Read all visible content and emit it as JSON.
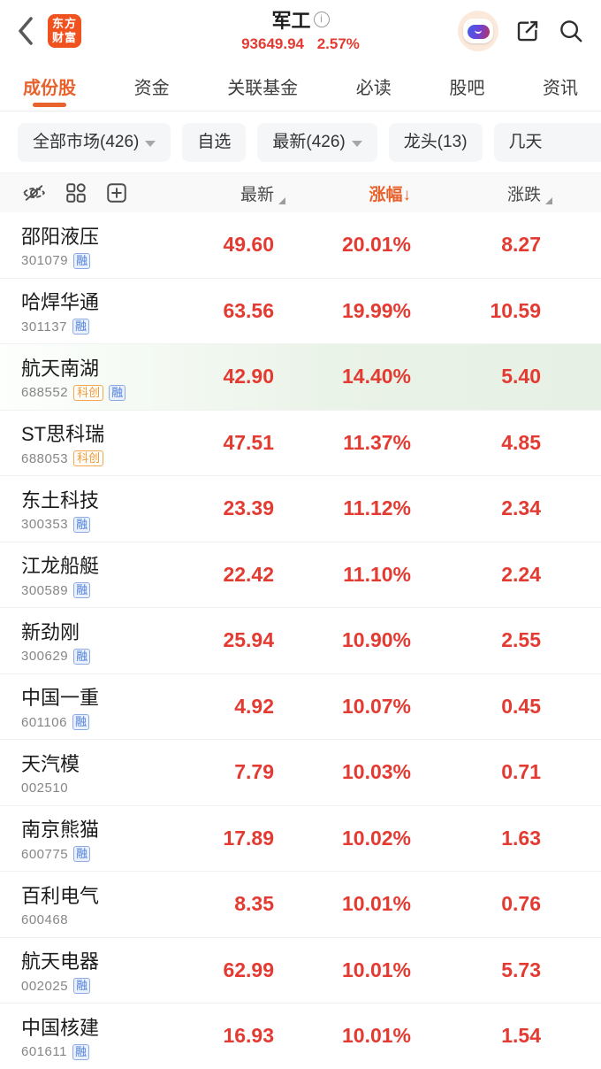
{
  "header": {
    "logo_line1": "东方",
    "logo_line2": "财富",
    "title": "军工",
    "index_value": "93649.94",
    "index_change_pct": "2.57%"
  },
  "tabs": [
    {
      "label": "成份股",
      "active": true
    },
    {
      "label": "资金",
      "active": false
    },
    {
      "label": "关联基金",
      "active": false
    },
    {
      "label": "必读",
      "active": false
    },
    {
      "label": "股吧",
      "active": false
    },
    {
      "label": "资讯",
      "active": false
    }
  ],
  "filters": [
    {
      "label": "全部市场(426)",
      "dropdown": true,
      "cut": false
    },
    {
      "label": "自选",
      "dropdown": false,
      "cut": false
    },
    {
      "label": "最新(426)",
      "dropdown": true,
      "cut": false
    },
    {
      "label": "龙头(13)",
      "dropdown": false,
      "cut": false
    },
    {
      "label": "几天",
      "dropdown": false,
      "cut": true
    }
  ],
  "table": {
    "tool_icons": [
      "hide-eye-icon",
      "layout-grid-icon",
      "add-column-icon"
    ],
    "columns": [
      {
        "label": "最新",
        "sort": "none"
      },
      {
        "label": "涨幅",
        "sort": "desc"
      },
      {
        "label": "涨跌",
        "sort": "none"
      }
    ],
    "rows": [
      {
        "name": "邵阳液压",
        "code": "301079",
        "tags": [
          "融"
        ],
        "price": "49.60",
        "change_pct": "20.01%",
        "change_abs": "8.27",
        "highlight": false
      },
      {
        "name": "哈焊华通",
        "code": "301137",
        "tags": [
          "融"
        ],
        "price": "63.56",
        "change_pct": "19.99%",
        "change_abs": "10.59",
        "highlight": false
      },
      {
        "name": "航天南湖",
        "code": "688552",
        "tags": [
          "科创",
          "融"
        ],
        "price": "42.90",
        "change_pct": "14.40%",
        "change_abs": "5.40",
        "highlight": true
      },
      {
        "name": "ST思科瑞",
        "code": "688053",
        "tags": [
          "科创"
        ],
        "price": "47.51",
        "change_pct": "11.37%",
        "change_abs": "4.85",
        "highlight": false
      },
      {
        "name": "东土科技",
        "code": "300353",
        "tags": [
          "融"
        ],
        "price": "23.39",
        "change_pct": "11.12%",
        "change_abs": "2.34",
        "highlight": false
      },
      {
        "name": "江龙船艇",
        "code": "300589",
        "tags": [
          "融"
        ],
        "price": "22.42",
        "change_pct": "11.10%",
        "change_abs": "2.24",
        "highlight": false
      },
      {
        "name": "新劲刚",
        "code": "300629",
        "tags": [
          "融"
        ],
        "price": "25.94",
        "change_pct": "10.90%",
        "change_abs": "2.55",
        "highlight": false
      },
      {
        "name": "中国一重",
        "code": "601106",
        "tags": [
          "融"
        ],
        "price": "4.92",
        "change_pct": "10.07%",
        "change_abs": "0.45",
        "highlight": false
      },
      {
        "name": "天汽模",
        "code": "002510",
        "tags": [],
        "price": "7.79",
        "change_pct": "10.03%",
        "change_abs": "0.71",
        "highlight": false
      },
      {
        "name": "南京熊猫",
        "code": "600775",
        "tags": [
          "融"
        ],
        "price": "17.89",
        "change_pct": "10.02%",
        "change_abs": "1.63",
        "highlight": false
      },
      {
        "name": "百利电气",
        "code": "600468",
        "tags": [],
        "price": "8.35",
        "change_pct": "10.01%",
        "change_abs": "0.76",
        "highlight": false
      },
      {
        "name": "航天电器",
        "code": "002025",
        "tags": [
          "融"
        ],
        "price": "62.99",
        "change_pct": "10.01%",
        "change_abs": "5.73",
        "highlight": false
      },
      {
        "name": "中国核建",
        "code": "601611",
        "tags": [
          "融"
        ],
        "price": "16.93",
        "change_pct": "10.01%",
        "change_abs": "1.54",
        "highlight": false
      }
    ]
  },
  "colors": {
    "up_red": "#e33b32",
    "accent_orange": "#e8622d",
    "brand_orange": "#f0521f",
    "margin_badge_blue": "#4f7fd9",
    "star_badge_orange": "#ef9b3a",
    "highlight_green": "#e6f0e4"
  },
  "sort_arrow": "↓"
}
